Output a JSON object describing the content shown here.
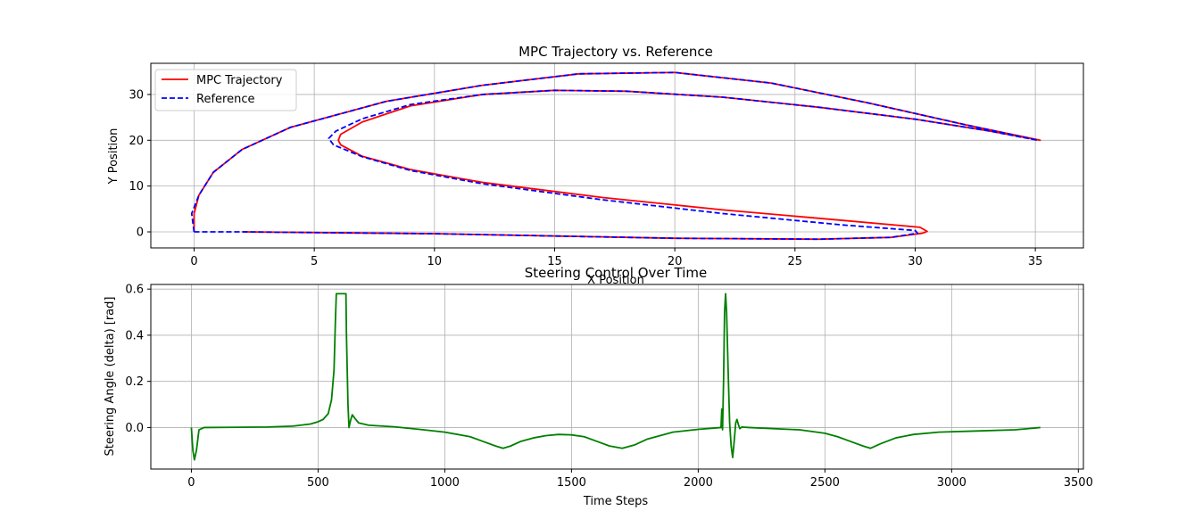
{
  "chart_data": [
    {
      "type": "line",
      "title": "MPC Trajectory vs. Reference",
      "xlabel": "X Position",
      "ylabel": "Y Position",
      "xlim": [
        -1.8,
        37.0
      ],
      "ylim": [
        -3.5,
        36.8
      ],
      "xticks": [
        0,
        5,
        10,
        15,
        20,
        25,
        30,
        35
      ],
      "yticks": [
        0,
        10,
        20,
        30
      ],
      "grid": true,
      "legend": "top-left",
      "series": [
        {
          "name": "MPC Trajectory",
          "color": "#ff0000",
          "style": "solid",
          "points": [
            [
              2,
              0
            ],
            [
              10,
              -0.4
            ],
            [
              20,
              -1.4
            ],
            [
              26,
              -1.6
            ],
            [
              29,
              -1.2
            ],
            [
              30.3,
              -0.3
            ],
            [
              30.5,
              0.1
            ],
            [
              30.2,
              1.0
            ],
            [
              27,
              2.5
            ],
            [
              22,
              4.8
            ],
            [
              17,
              7.5
            ],
            [
              12,
              10.8
            ],
            [
              9,
              13.6
            ],
            [
              7,
              16.5
            ],
            [
              6.1,
              19
            ],
            [
              6,
              20
            ],
            [
              6.1,
              21.3
            ],
            [
              7,
              24
            ],
            [
              9,
              27.5
            ],
            [
              12,
              30
            ],
            [
              15,
              30.9
            ],
            [
              18,
              30.7
            ],
            [
              22,
              29.4
            ],
            [
              26,
              27.2
            ],
            [
              30,
              24.6
            ],
            [
              33,
              22.1
            ],
            [
              35.2,
              20
            ],
            [
              32,
              23.5
            ],
            [
              28,
              28.2
            ],
            [
              24,
              32.5
            ],
            [
              20,
              34.8
            ],
            [
              16,
              34.5
            ],
            [
              12,
              32
            ],
            [
              8,
              28.5
            ],
            [
              4,
              22.8
            ],
            [
              2,
              18
            ],
            [
              0.8,
              13
            ],
            [
              0.2,
              8
            ],
            [
              0,
              4
            ],
            [
              0,
              0
            ]
          ]
        },
        {
          "name": "Reference",
          "color": "#0000ff",
          "style": "dashed",
          "points": [
            [
              0,
              0
            ],
            [
              2,
              0
            ],
            [
              10,
              -0.4
            ],
            [
              20,
              -1.4
            ],
            [
              26,
              -1.6
            ],
            [
              29,
              -1.2
            ],
            [
              30.1,
              -0.3
            ],
            [
              30,
              0.3
            ],
            [
              27,
              1.5
            ],
            [
              22,
              4
            ],
            [
              17,
              7
            ],
            [
              12,
              10.5
            ],
            [
              9,
              13.4
            ],
            [
              7,
              16.4
            ],
            [
              5.8,
              19
            ],
            [
              5.6,
              20.4
            ],
            [
              5.9,
              22
            ],
            [
              7,
              24.7
            ],
            [
              9,
              27.8
            ],
            [
              12,
              30
            ],
            [
              15,
              30.9
            ],
            [
              18,
              30.7
            ],
            [
              22,
              29.4
            ],
            [
              26,
              27.2
            ],
            [
              30,
              24.6
            ],
            [
              33,
              22.1
            ],
            [
              35.1,
              20
            ],
            [
              32,
              23.5
            ],
            [
              28,
              28.2
            ],
            [
              24,
              32.5
            ],
            [
              20,
              34.8
            ],
            [
              16,
              34.5
            ],
            [
              12,
              32
            ],
            [
              8,
              28.5
            ],
            [
              4,
              22.8
            ],
            [
              2,
              18
            ],
            [
              0.8,
              13
            ],
            [
              0.2,
              8
            ],
            [
              -0.1,
              4
            ],
            [
              0,
              0
            ]
          ]
        }
      ]
    },
    {
      "type": "line",
      "title": "Steering Control Over Time",
      "xlabel": "Time Steps",
      "ylabel": "Steering Angle (delta) [rad]",
      "xlim": [
        -160,
        3520
      ],
      "ylim": [
        -0.18,
        0.62
      ],
      "xticks": [
        0,
        500,
        1000,
        1500,
        2000,
        2500,
        3000,
        3500
      ],
      "yticks": [
        0.0,
        0.2,
        0.4,
        0.6
      ],
      "grid": true,
      "series": [
        {
          "color": "#008000",
          "style": "solid",
          "points": [
            [
              0,
              0
            ],
            [
              6,
              -0.1
            ],
            [
              12,
              -0.14
            ],
            [
              20,
              -0.1
            ],
            [
              30,
              -0.01
            ],
            [
              50,
              0
            ],
            [
              300,
              0.002
            ],
            [
              400,
              0.006
            ],
            [
              470,
              0.015
            ],
            [
              500,
              0.025
            ],
            [
              520,
              0.035
            ],
            [
              540,
              0.06
            ],
            [
              553,
              0.12
            ],
            [
              563,
              0.25
            ],
            [
              568,
              0.45
            ],
            [
              572,
              0.58
            ],
            [
              610,
              0.58
            ],
            [
              612,
              0.4
            ],
            [
              618,
              0.1
            ],
            [
              622,
              0
            ],
            [
              628,
              0.03
            ],
            [
              635,
              0.055
            ],
            [
              645,
              0.04
            ],
            [
              660,
              0.02
            ],
            [
              700,
              0.01
            ],
            [
              800,
              0.003
            ],
            [
              900,
              -0.008
            ],
            [
              1000,
              -0.02
            ],
            [
              1100,
              -0.04
            ],
            [
              1150,
              -0.06
            ],
            [
              1200,
              -0.08
            ],
            [
              1230,
              -0.09
            ],
            [
              1260,
              -0.08
            ],
            [
              1300,
              -0.06
            ],
            [
              1350,
              -0.045
            ],
            [
              1400,
              -0.035
            ],
            [
              1450,
              -0.03
            ],
            [
              1500,
              -0.032
            ],
            [
              1550,
              -0.04
            ],
            [
              1600,
              -0.06
            ],
            [
              1650,
              -0.08
            ],
            [
              1700,
              -0.09
            ],
            [
              1750,
              -0.075
            ],
            [
              1800,
              -0.05
            ],
            [
              1850,
              -0.035
            ],
            [
              1900,
              -0.02
            ],
            [
              2000,
              -0.008
            ],
            [
              2090,
              0
            ],
            [
              2093,
              0.08
            ],
            [
              2096,
              -0.01
            ],
            [
              2100,
              0.2
            ],
            [
              2104,
              0.5
            ],
            [
              2108,
              0.58
            ],
            [
              2112,
              0.5
            ],
            [
              2118,
              0.25
            ],
            [
              2124,
              0.02
            ],
            [
              2130,
              -0.08
            ],
            [
              2136,
              -0.13
            ],
            [
              2142,
              -0.06
            ],
            [
              2148,
              0.02
            ],
            [
              2153,
              0.035
            ],
            [
              2158,
              0.015
            ],
            [
              2164,
              -0.005
            ],
            [
              2172,
              0.002
            ],
            [
              2200,
              0
            ],
            [
              2400,
              -0.01
            ],
            [
              2500,
              -0.025
            ],
            [
              2550,
              -0.04
            ],
            [
              2600,
              -0.06
            ],
            [
              2650,
              -0.08
            ],
            [
              2680,
              -0.09
            ],
            [
              2720,
              -0.07
            ],
            [
              2780,
              -0.045
            ],
            [
              2850,
              -0.03
            ],
            [
              2950,
              -0.02
            ],
            [
              3100,
              -0.015
            ],
            [
              3250,
              -0.01
            ],
            [
              3300,
              -0.005
            ],
            [
              3350,
              0
            ]
          ]
        }
      ]
    }
  ]
}
